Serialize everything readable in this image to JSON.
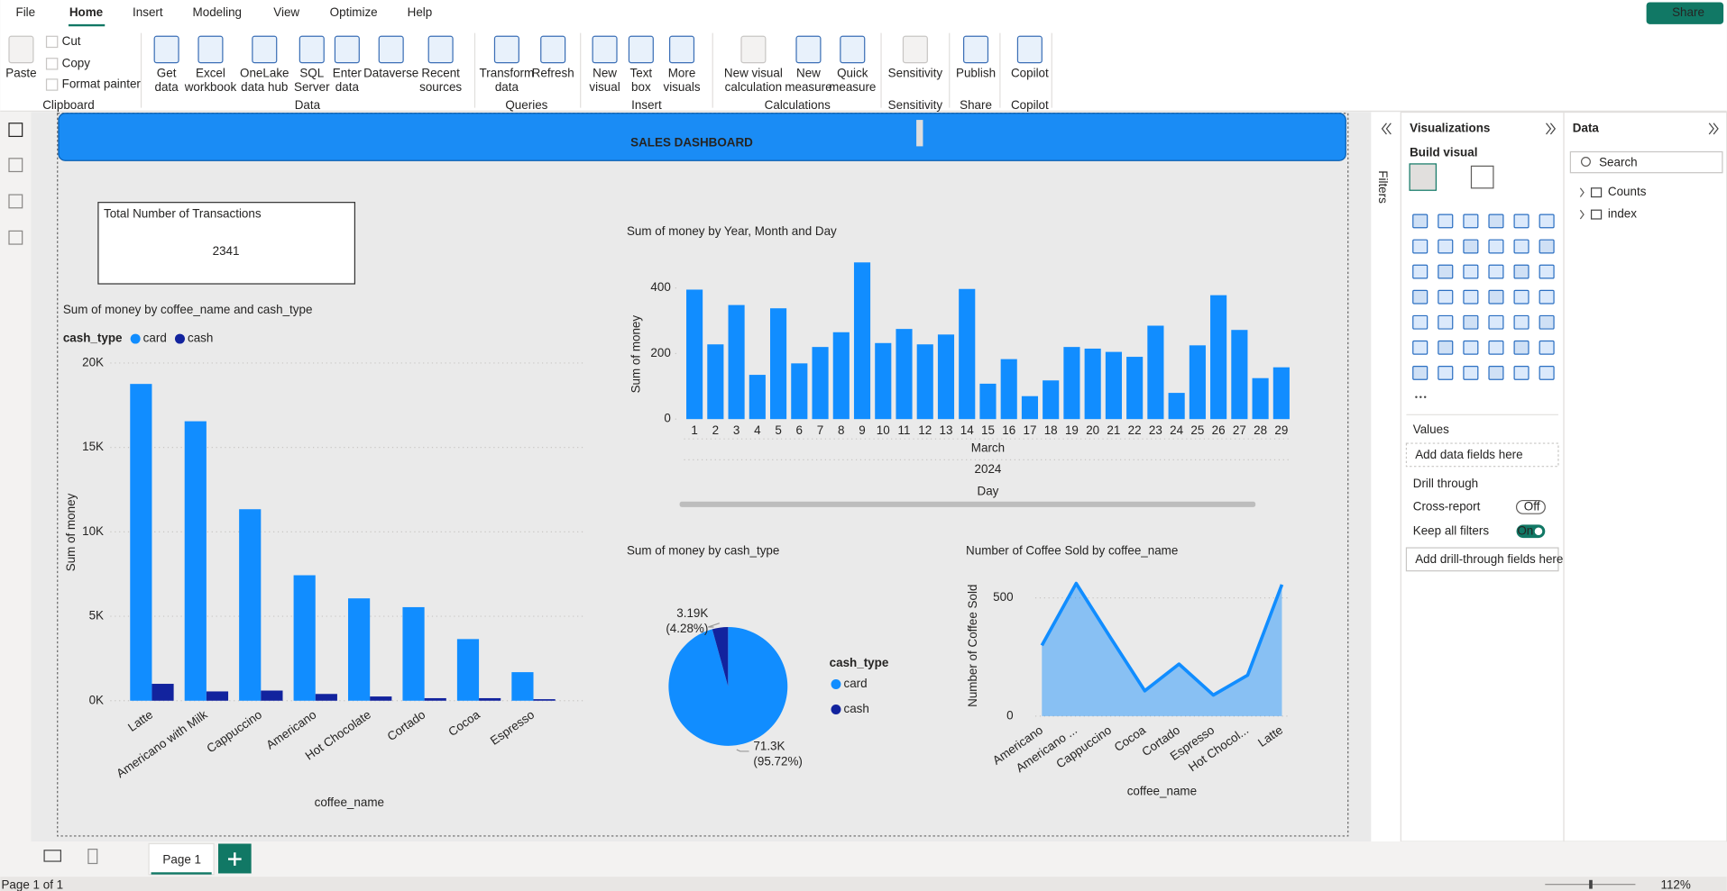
{
  "menu": [
    "File",
    "Home",
    "Insert",
    "Modeling",
    "View",
    "Optimize",
    "Help"
  ],
  "share_button": "Share",
  "ribbon": [
    {
      "group": "Clipboard",
      "items": [
        [
          "Paste"
        ],
        [
          "Cut"
        ],
        [
          "Copy"
        ],
        [
          "Format painter"
        ]
      ]
    },
    {
      "group": "Data",
      "items": [
        [
          "Get",
          "data"
        ],
        [
          "Excel",
          "workbook"
        ],
        [
          "OneLake",
          "data hub"
        ],
        [
          "SQL",
          "Server"
        ],
        [
          "Enter",
          "data"
        ],
        [
          "Dataverse"
        ],
        [
          "Recent",
          "sources"
        ]
      ]
    },
    {
      "group": "Queries",
      "items": [
        [
          "Transform",
          "data"
        ],
        [
          "Refresh"
        ]
      ]
    },
    {
      "group": "Insert",
      "items": [
        [
          "New",
          "visual"
        ],
        [
          "Text",
          "box"
        ],
        [
          "More",
          "visuals"
        ]
      ]
    },
    {
      "group": "Calculations",
      "items": [
        [
          "New visual",
          "calculation"
        ],
        [
          "New",
          "measure"
        ],
        [
          "Quick",
          "measure"
        ]
      ]
    },
    {
      "group": "Sensitivity",
      "items": [
        [
          "Sensitivity"
        ]
      ]
    },
    {
      "group": "Share",
      "items": [
        [
          "Publish"
        ]
      ]
    },
    {
      "group": "Copilot",
      "items": [
        [
          "Copilot"
        ]
      ]
    }
  ],
  "dashboard": {
    "title": "SALES DASHBOARD",
    "card": {
      "label": "Total Number of Transactions",
      "value": 2341
    }
  },
  "chart_data": [
    {
      "type": "bar",
      "title": "Sum of money by coffee_name and cash_type",
      "legend_title": "cash_type",
      "categories": [
        "Latte",
        "Americano with Milk",
        "Cappuccino",
        "Americano",
        "Hot Chocolate",
        "Cortado",
        "Cocoa",
        "Espresso"
      ],
      "series": [
        {
          "name": "card",
          "color": "#118dff",
          "values": [
            18760,
            16550,
            11340,
            7430,
            6060,
            5540,
            3650,
            1690
          ]
        },
        {
          "name": "cash",
          "color": "#12239e",
          "values": [
            1000,
            550,
            600,
            400,
            250,
            150,
            150,
            90
          ]
        }
      ],
      "ylim": [
        0,
        20000
      ],
      "yticks": [
        {
          "value": 0,
          "label": "0K"
        },
        {
          "value": 5000,
          "label": "5K"
        },
        {
          "value": 10000,
          "label": "10K"
        },
        {
          "value": 15000,
          "label": "15K"
        },
        {
          "value": 20000,
          "label": "20K"
        }
      ],
      "xlabel": "coffee_name",
      "ylabel": "Sum of money",
      "grid": true
    },
    {
      "type": "bar",
      "title": "Sum of money by Year, Month and Day",
      "categories": [
        1,
        2,
        3,
        4,
        5,
        6,
        7,
        8,
        9,
        10,
        11,
        12,
        13,
        14,
        15,
        16,
        17,
        18,
        19,
        20,
        21,
        22,
        23,
        24,
        25,
        26,
        27,
        28,
        29
      ],
      "values": [
        395,
        228,
        348,
        135,
        338,
        170,
        220,
        265,
        478,
        232,
        275,
        228,
        258,
        397,
        108,
        183,
        70,
        118,
        220,
        215,
        205,
        190,
        285,
        80,
        225,
        378,
        272,
        125,
        158
      ],
      "color": "#118dff",
      "ylim": [
        0,
        500
      ],
      "yticks": [
        0,
        200,
        400
      ],
      "x_groups": [
        "March",
        "2024"
      ],
      "xlabel": "Day",
      "ylabel": "Sum of money",
      "grid": false
    },
    {
      "type": "pie",
      "title": "Sum of money by cash_type",
      "legend_title": "cash_type",
      "categories": [
        "card",
        "cash"
      ],
      "values": [
        71300,
        3190
      ],
      "value_labels": [
        "71.3K",
        "3.19K"
      ],
      "percent_labels": [
        "(95.72%)",
        "(4.28%)"
      ],
      "colors": [
        "#118dff",
        "#12239e"
      ]
    },
    {
      "type": "area",
      "title": "Number of Coffee Sold by coffee_name",
      "categories": [
        "Americano",
        "Americano ...",
        "Cappuccino",
        "Cocoa",
        "Cortado",
        "Espresso",
        "Hot Chocol...",
        "Latte"
      ],
      "values": [
        299,
        561,
        332,
        107,
        220,
        89,
        173,
        556
      ],
      "color": "#118dff",
      "ylim": [
        0,
        600
      ],
      "yticks": [
        0,
        500
      ],
      "xlabel": "coffee_name",
      "ylabel": "Number of Coffee Sold",
      "grid": true
    }
  ],
  "filters_pane": {
    "title": "Filters"
  },
  "visualizations_pane": {
    "title": "Visualizations",
    "build_visual": "Build visual",
    "values_label": "Values",
    "values_well": "Add data fields here",
    "drill_through": "Drill through",
    "cross_report": "Cross-report",
    "cross_report_state": "Off",
    "keep_filters": "Keep all filters",
    "keep_filters_state": "On",
    "drill_well": "Add drill-through fields here"
  },
  "data_pane": {
    "title": "Data",
    "search_placeholder": "Search",
    "tables": [
      "Counts",
      "index"
    ]
  },
  "pages": {
    "tabs": [
      "Page 1"
    ],
    "status": "Page 1 of 1",
    "zoom": "112%"
  }
}
